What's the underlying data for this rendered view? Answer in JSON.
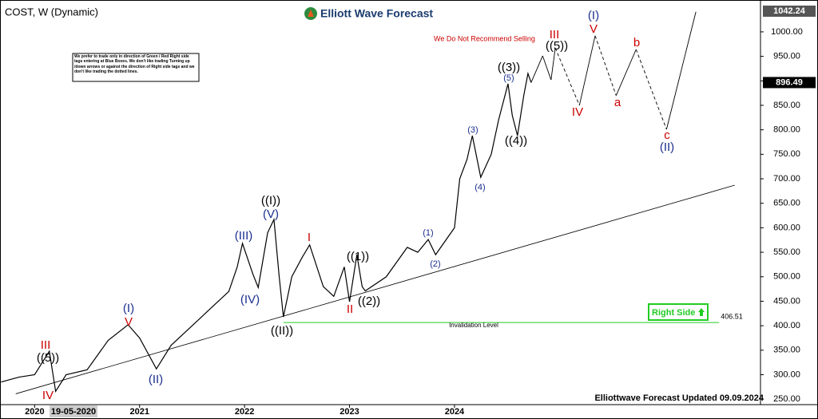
{
  "chart_data": {
    "type": "line",
    "title": "COST, W (Dynamic)",
    "brand": "Elliott Wave Forecast",
    "warning": "We Do Not Recommend Selling",
    "note": "We prefer to trade only in direction of Green / Red Right side tags entering at Blue Boxes. We don't like trading Turning up /down arrows or against the direction of Right side tags and we don't like trading the dotted lines.",
    "right_side": "Right Side",
    "updated": "Elliottwave Forecast Updated 09.09.2024",
    "x": [
      2019.68,
      2019.85,
      2020.0,
      2020.14,
      2020.2,
      2020.3,
      2020.5,
      2020.7,
      2020.89,
      2021.0,
      2021.16,
      2021.3,
      2021.5,
      2021.7,
      2021.85,
      2021.93,
      2021.98,
      2022.08,
      2022.13,
      2022.22,
      2022.28,
      2022.33,
      2022.37,
      2022.45,
      2022.55,
      2022.62,
      2022.75,
      2022.85,
      2022.95,
      2023.0,
      2023.07,
      2023.12,
      2023.15,
      2023.35,
      2023.55,
      2023.65,
      2023.75,
      2023.82,
      2024.0,
      2024.05,
      2024.12,
      2024.17,
      2024.25,
      2024.35,
      2024.42,
      2024.51,
      2024.55,
      2024.6,
      2024.66,
      2024.7,
      2024.73
    ],
    "series": [
      {
        "color": "#000000",
        "values": [
          285,
          295,
          300,
          348,
          266,
          300,
          310,
          370,
          402,
          375,
          312,
          360,
          400,
          440,
          470,
          520,
          568,
          505,
          478,
          590,
          617,
          500,
          418,
          500,
          540,
          565,
          480,
          460,
          520,
          449,
          545,
          480,
          471,
          500,
          560,
          550,
          576,
          545,
          600,
          700,
          740,
          788,
          703,
          750,
          820,
          894,
          830,
          788,
          870,
          915,
          896.49
        ]
      }
    ],
    "projection": {
      "color": "#000000",
      "x": [
        2024.84,
        2024.92,
        2024.96,
        2025.19,
        2025.34,
        2025.54,
        2025.73,
        2026.02,
        2026.3
      ],
      "values": [
        951,
        902,
        967,
        850,
        992,
        870,
        964,
        801,
        1041
      ],
      "line_styles": [
        "solid",
        "solid",
        "dashed",
        "solid",
        "dashed",
        "solid",
        "dashed",
        "solid"
      ]
    },
    "trendline": {
      "color": "#000000",
      "x": [
        2019.82,
        2026.67
      ],
      "values": [
        261,
        687
      ]
    },
    "invalidation": {
      "value": 406.51,
      "label": "Invalidation Level",
      "color": "#22cc22",
      "x_start": 2022.37
    },
    "price_tags": [
      {
        "value": 1042.24,
        "color": "#555555"
      },
      {
        "value": 896.49,
        "color": "#000000"
      }
    ],
    "cursor_date": {
      "value": 2020.37,
      "label": "19-05-2020"
    },
    "xlim": [
      2019.67,
      2026.9
    ],
    "xticks": [
      2020,
      2021,
      2022,
      2023,
      2024
    ],
    "ylim": [
      234,
      1052
    ],
    "yticks": [
      {
        "value": 250,
        "label": "250.00"
      },
      {
        "value": 300,
        "label": "300.00"
      },
      {
        "value": 350,
        "label": "350.00"
      },
      {
        "value": 400,
        "label": "400.00"
      },
      {
        "value": 450,
        "label": "450.00"
      },
      {
        "value": 500,
        "label": "500.00"
      },
      {
        "value": 550,
        "label": "550.00"
      },
      {
        "value": 600,
        "label": "600.00"
      },
      {
        "value": 650,
        "label": "650.00"
      },
      {
        "value": 700,
        "label": "700.00"
      },
      {
        "value": 750,
        "label": "750.00"
      },
      {
        "value": 800,
        "label": "800.00"
      },
      {
        "value": 850,
        "label": "850.00"
      },
      {
        "value": 900,
        "label": "900.00"
      },
      {
        "value": 950,
        "label": "950.00"
      },
      {
        "value": 1000,
        "label": "1000.00"
      }
    ],
    "annotations": [
      {
        "text": "III",
        "color": "#cc0000"
      },
      {
        "text": "((5))",
        "color": "#000000"
      },
      {
        "text": "IV",
        "color": "#cc0000"
      },
      {
        "text": "(I)",
        "color": "#1a2f8f"
      },
      {
        "text": "V",
        "color": "#cc0000"
      },
      {
        "text": "(II)",
        "color": "#1a2f8f"
      },
      {
        "text": "(III)",
        "color": "#1a2f8f"
      },
      {
        "text": "(IV)",
        "color": "#1a2f8f"
      },
      {
        "text": "((I))",
        "color": "#000000"
      },
      {
        "text": "(V)",
        "color": "#1a2f8f"
      },
      {
        "text": "((II))",
        "color": "#000000"
      },
      {
        "text": "I",
        "color": "#cc0000"
      },
      {
        "text": "II",
        "color": "#cc0000"
      },
      {
        "text": "((1))",
        "color": "#000000"
      },
      {
        "text": "((2))",
        "color": "#000000"
      },
      {
        "text": "(1)",
        "color": "#1a2f8f"
      },
      {
        "text": "(2)",
        "color": "#1a2f8f"
      },
      {
        "text": "(3)",
        "color": "#1a2f8f"
      },
      {
        "text": "(4)",
        "color": "#1a2f8f"
      },
      {
        "text": "((3))",
        "color": "#000000"
      },
      {
        "text": "(5)",
        "color": "#1a2f8f"
      },
      {
        "text": "((4))",
        "color": "#000000"
      },
      {
        "text": "III",
        "color": "#cc0000"
      },
      {
        "text": "((5))",
        "color": "#000000"
      },
      {
        "text": "IV",
        "color": "#cc0000"
      },
      {
        "text": "(I)",
        "color": "#1a2f8f"
      },
      {
        "text": "V",
        "color": "#cc0000"
      },
      {
        "text": "a",
        "color": "#cc0000"
      },
      {
        "text": "b",
        "color": "#cc0000"
      },
      {
        "text": "c",
        "color": "#cc0000"
      },
      {
        "text": "(II)",
        "color": "#1a2f8f"
      }
    ]
  }
}
